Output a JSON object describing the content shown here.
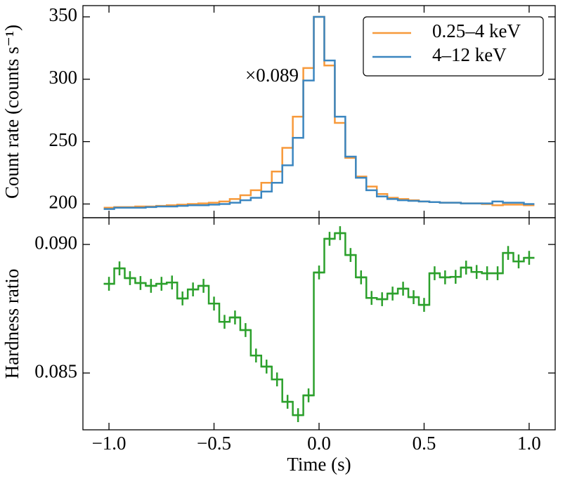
{
  "chart_data": [
    {
      "type": "step",
      "ylabel": "Count rate (counts s⁻¹)",
      "annotation": "×0.089",
      "annotation_color": "#f28e2b",
      "legend": "upper right",
      "x": [
        -1.0,
        -0.95,
        -0.9,
        -0.85,
        -0.8,
        -0.75,
        -0.7,
        -0.65,
        -0.6,
        -0.55,
        -0.5,
        -0.45,
        -0.4,
        -0.35,
        -0.3,
        -0.25,
        -0.2,
        -0.15,
        -0.1,
        -0.05,
        0.0,
        0.05,
        0.1,
        0.15,
        0.2,
        0.25,
        0.3,
        0.35,
        0.4,
        0.45,
        0.5,
        0.55,
        0.6,
        0.65,
        0.7,
        0.75,
        0.8,
        0.85,
        0.9,
        0.95,
        1.0
      ],
      "series": [
        {
          "name": "0.25–4 keV",
          "color": "#f7993a",
          "values": [
            197,
            197.5,
            197.5,
            198,
            198,
            198.5,
            199,
            199.5,
            200,
            200.5,
            201,
            202,
            204,
            207,
            211,
            217,
            226,
            245,
            270,
            309,
            350,
            311,
            265,
            237,
            222,
            214,
            208,
            205,
            204,
            203,
            202,
            201.5,
            201,
            201,
            200.5,
            200.5,
            200,
            199,
            199.5,
            199.5,
            199
          ]
        },
        {
          "name": "4–12 keV",
          "color": "#3b86c0",
          "values": [
            196,
            197,
            197,
            197,
            197.5,
            198,
            198,
            198.5,
            199,
            199,
            199.5,
            200,
            201,
            203,
            205,
            210,
            217,
            231,
            253,
            299,
            350,
            315,
            270,
            238,
            221,
            211,
            206,
            204,
            203,
            202.5,
            202,
            201.5,
            201,
            201,
            200.5,
            200.5,
            200.5,
            202,
            201,
            201,
            200
          ]
        }
      ],
      "xlim": [
        -1.124,
        1.124
      ],
      "xticks": [
        {
          "value": -1.0,
          "label": "−1.0"
        },
        {
          "value": -0.5,
          "label": "−0.5"
        },
        {
          "value": 0,
          "label": "0.0"
        },
        {
          "value": 0.5,
          "label": "0.5"
        },
        {
          "value": 1.0,
          "label": "1.0"
        }
      ],
      "ylim": [
        189,
        359
      ],
      "yticks": [
        200,
        250,
        300,
        350
      ]
    },
    {
      "type": "errorstep",
      "ylabel": "Hardness ratio",
      "xlabel": "Time (s)",
      "color": "#2ca02c",
      "x": [
        -1.0,
        -0.95,
        -0.9,
        -0.85,
        -0.8,
        -0.75,
        -0.7,
        -0.65,
        -0.6,
        -0.55,
        -0.5,
        -0.45,
        -0.4,
        -0.35,
        -0.3,
        -0.25,
        -0.2,
        -0.15,
        -0.1,
        -0.05,
        0.0,
        0.05,
        0.1,
        0.15,
        0.2,
        0.25,
        0.3,
        0.35,
        0.4,
        0.45,
        0.5,
        0.55,
        0.6,
        0.65,
        0.7,
        0.75,
        0.8,
        0.85,
        0.9,
        0.95,
        1.0
      ],
      "values": [
        0.08847,
        0.08907,
        0.08869,
        0.0885,
        0.08839,
        0.08847,
        0.08852,
        0.0879,
        0.08825,
        0.08839,
        0.0877,
        0.08699,
        0.08716,
        0.08667,
        0.08568,
        0.08525,
        0.08475,
        0.08388,
        0.08336,
        0.08413,
        0.08891,
        0.09022,
        0.09044,
        0.08959,
        0.08872,
        0.08792,
        0.08787,
        0.08809,
        0.08828,
        0.08795,
        0.08765,
        0.08888,
        0.08872,
        0.08874,
        0.0891,
        0.08893,
        0.08888,
        0.08888,
        0.08967,
        0.08934,
        0.08948
      ],
      "yerr": 0.00027,
      "xerr": 0.025,
      "xlim": [
        -1.124,
        1.124
      ],
      "xticks": [
        {
          "value": -1.0,
          "label": "−1.0"
        },
        {
          "value": -0.5,
          "label": "−0.5"
        },
        {
          "value": 0,
          "label": "0.0"
        },
        {
          "value": 0.5,
          "label": "0.5"
        },
        {
          "value": 1.0,
          "label": "1.0"
        }
      ],
      "ylim": [
        0.08279,
        0.09104
      ],
      "yticks": [
        {
          "value": 0.085,
          "label": "0.085"
        },
        {
          "value": 0.09,
          "label": "0.090"
        }
      ]
    }
  ]
}
